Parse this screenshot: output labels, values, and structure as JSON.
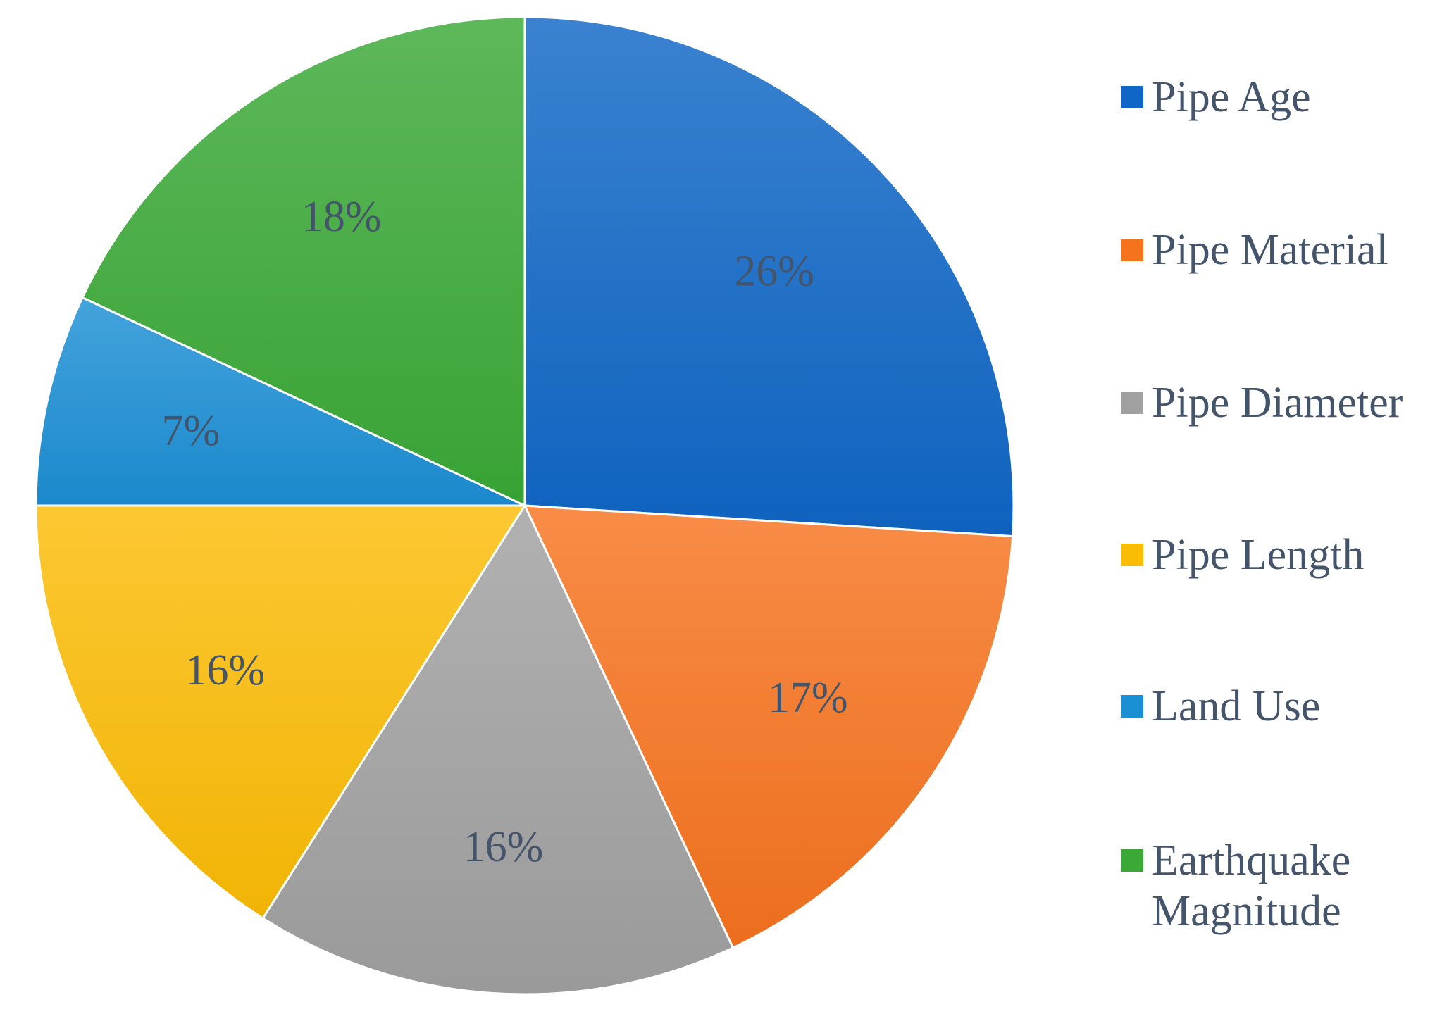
{
  "chart_data": {
    "type": "pie",
    "categories": [
      "Pipe Age",
      "Pipe Material",
      "Pipe Diameter",
      "Pipe Length",
      "Land Use",
      "Earthquake Magnitude"
    ],
    "values": [
      26,
      17,
      16,
      16,
      7,
      18
    ],
    "value_labels": [
      "26%",
      "17%",
      "16%",
      "16%",
      "7%",
      "18%"
    ],
    "colors": [
      "#0f66c6",
      "#f6731e",
      "#a0a0a0",
      "#fbbc05",
      "#1b8fd4",
      "#3aa936"
    ],
    "legend": {
      "position": "right",
      "entries": [
        {
          "lines": [
            "Pipe Age"
          ]
        },
        {
          "lines": [
            "Pipe Material"
          ]
        },
        {
          "lines": [
            "Pipe Diameter"
          ]
        },
        {
          "lines": [
            "Pipe Length"
          ]
        },
        {
          "lines": [
            "Land Use"
          ]
        },
        {
          "lines": [
            "Earthquake",
            "Magnitude"
          ]
        }
      ]
    }
  }
}
